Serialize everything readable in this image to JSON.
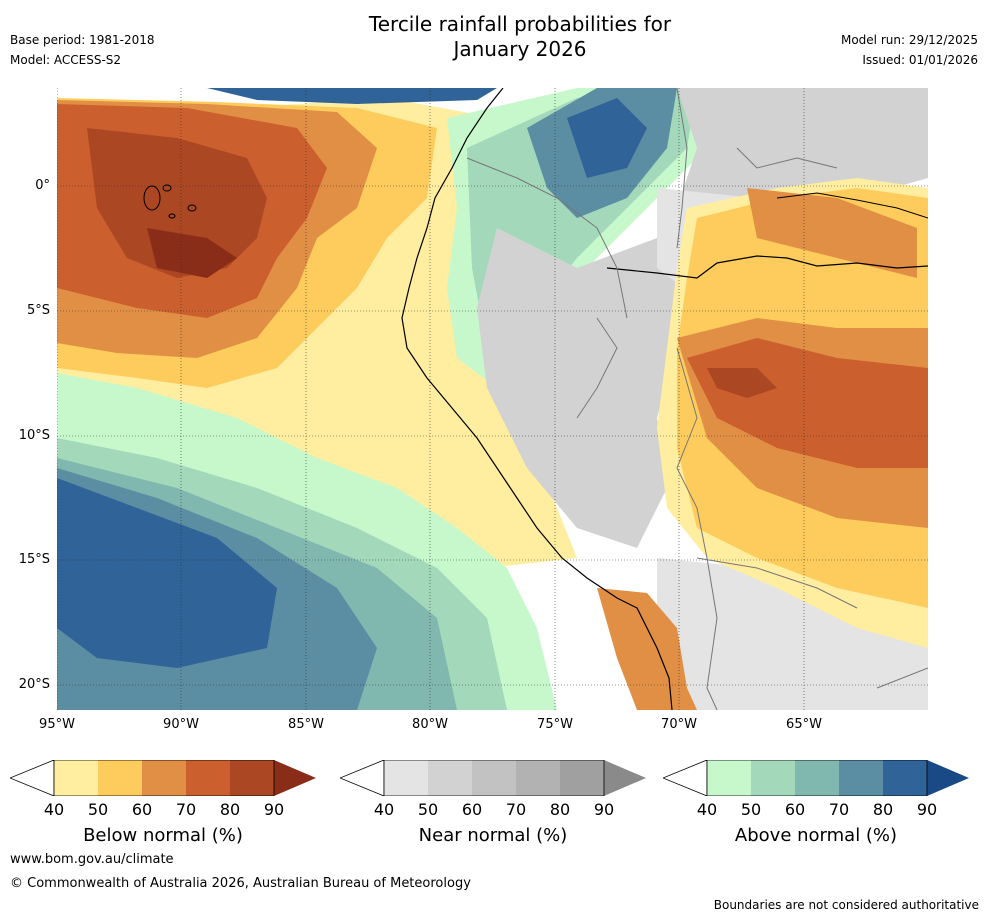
{
  "header": {
    "title_line1": "Tercile rainfall probabilities for",
    "title_line2": "January 2026",
    "base_period": "Base period: 1981-2018",
    "model": "Model: ACCESS-S2",
    "model_run": "Model run: 29/12/2025",
    "issued": "Issued: 01/01/2026"
  },
  "map": {
    "lat_labels": [
      "0°",
      "5°S",
      "10°S",
      "15°S",
      "20°S"
    ],
    "lon_labels": [
      "95°W",
      "90°W",
      "85°W",
      "80°W",
      "75°W",
      "70°W",
      "65°W"
    ]
  },
  "legend": {
    "below": {
      "title": "Below normal (%)",
      "ticks": [
        "40",
        "50",
        "60",
        "70",
        "80",
        "90"
      ],
      "colors": [
        "#ffeda0",
        "#fecc5c",
        "#e08f45",
        "#cc5f2e",
        "#ab4722",
        "#8a2d18"
      ]
    },
    "near": {
      "title": "Near normal (%)",
      "ticks": [
        "40",
        "50",
        "60",
        "70",
        "80",
        "90"
      ],
      "colors": [
        "#e4e4e4",
        "#d2d2d2",
        "#c2c2c2",
        "#b2b2b2",
        "#a0a0a0",
        "#8a8a8a"
      ]
    },
    "above": {
      "title": "Above normal (%)",
      "ticks": [
        "40",
        "50",
        "60",
        "70",
        "80",
        "90"
      ],
      "colors": [
        "#c6f8cb",
        "#a3d8bb",
        "#80b7ae",
        "#5b8ea3",
        "#306397",
        "#1a4a86"
      ]
    }
  },
  "footer": {
    "url": "www.bom.gov.au/climate",
    "copyright": "© Commonwealth of Australia 2026, Australian Bureau of Meteorology",
    "disclaimer": "Boundaries are not considered authoritative"
  }
}
